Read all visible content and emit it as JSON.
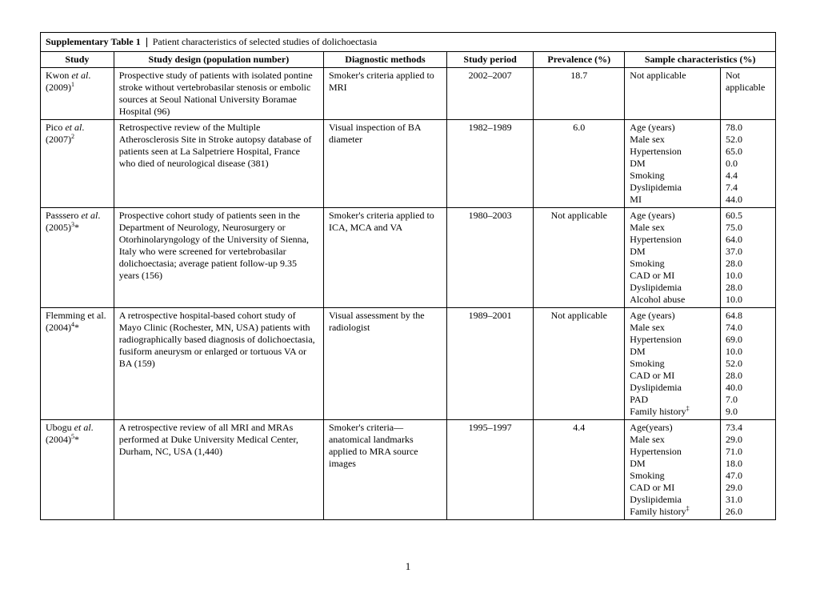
{
  "title_strong": "Supplementary Table 1",
  "title_rest": "Patient characteristics of selected studies of dolichoectasia",
  "headers": {
    "study": "Study",
    "design": "Study design (population number)",
    "diag": "Diagnostic methods",
    "period": "Study period",
    "prev": "Prevalence (%)",
    "chars": "Sample characteristics (%)"
  },
  "rows": [
    {
      "study_html": "Kwon <i>et al</i>. (2009)<sup>1</sup>",
      "design": "Prospective study of patients with isolated pontine stroke without vertebrobasilar stenosis or embolic sources at Seoul National University Boramae Hospital (96)",
      "diag": "Smoker's criteria applied to MRI",
      "period": "2002–2007",
      "prev": "18.7",
      "char_label": "Not applicable",
      "char_value": "Not applicable",
      "char_list": []
    },
    {
      "study_html": "Pico <i>et al</i>. (2007)<sup>2</sup>",
      "design": "Retrospective review of the Multiple Atherosclerosis Site in Stroke autopsy database of patients seen at La Salpetriere Hospital, France who died of neurological disease (381)",
      "diag": "Visual inspection of BA diameter",
      "period": "1982–1989",
      "prev": "6.0",
      "char_list": [
        {
          "l": "Age (years)",
          "v": "78.0"
        },
        {
          "l": "Male sex",
          "v": "52.0"
        },
        {
          "l": "Hypertension",
          "v": "65.0"
        },
        {
          "l": "DM",
          "v": "0.0"
        },
        {
          "l": "Smoking",
          "v": "4.4"
        },
        {
          "l": "Dyslipidemia",
          "v": "7.4"
        },
        {
          "l": "MI",
          "v": "44.0"
        }
      ]
    },
    {
      "study_html": "Passsero <i>et al</i>. (2005)<sup>3</sup>*",
      "design": "Prospective cohort study of patients seen in the Department of Neurology, Neurosurgery or Otorhinolaryngology of the University of Sienna, Italy who were screened for vertebrobasilar dolichoectasia; average patient follow-up 9.35 years (156)",
      "diag": "Smoker's criteria applied to ICA, MCA and VA",
      "period": "1980–2003",
      "prev": "Not applicable",
      "char_list": [
        {
          "l": "Age (years)",
          "v": "60.5"
        },
        {
          "l": "Male sex",
          "v": "75.0"
        },
        {
          "l": "Hypertension",
          "v": "64.0"
        },
        {
          "l": "DM",
          "v": "37.0"
        },
        {
          "l": "Smoking",
          "v": "28.0"
        },
        {
          "l": "CAD or MI",
          "v": "10.0"
        },
        {
          "l": "Dyslipidemia",
          "v": "28.0"
        },
        {
          "l": "Alcohol abuse",
          "v": "10.0"
        }
      ]
    },
    {
      "study_html": "Flemming et al. (2004)<sup>4</sup>*",
      "design": "A retrospective hospital-based cohort study of Mayo Clinic (Rochester, MN, USA) patients with radiographically based diagnosis of dolichoectasia, fusiform aneurysm or enlarged or tortuous VA or BA (159)",
      "diag": "Visual assessment by the radiologist",
      "period": "1989–2001",
      "prev": "Not applicable",
      "char_list": [
        {
          "l": "Age (years)",
          "v": "64.8"
        },
        {
          "l": "Male sex",
          "v": "74.0"
        },
        {
          "l": "Hypertension",
          "v": "69.0"
        },
        {
          "l": "DM",
          "v": "10.0"
        },
        {
          "l": "Smoking",
          "v": "52.0"
        },
        {
          "l": "CAD or MI",
          "v": "28.0"
        },
        {
          "l": "Dyslipidemia",
          "v": "40.0"
        },
        {
          "l": "PAD",
          "v": "7.0"
        },
        {
          "l": "Family history<sup>‡</sup>",
          "v": "9.0"
        }
      ]
    },
    {
      "study_html": "Ubogu <i>et al</i>. (2004)<sup>5</sup>*",
      "design": "A retrospective review of all MRI and MRAs performed at Duke University Medical Center, Durham, NC, USA (1,440)",
      "diag": "Smoker's criteria—anatomical landmarks applied to MRA source images",
      "period": "1995–1997",
      "prev": "4.4",
      "char_list": [
        {
          "l": "Age(years)",
          "v": "73.4"
        },
        {
          "l": "Male sex",
          "v": "29.0"
        },
        {
          "l": "Hypertension",
          "v": "71.0"
        },
        {
          "l": "DM",
          "v": "18.0"
        },
        {
          "l": "Smoking",
          "v": "47.0"
        },
        {
          "l": "CAD or MI",
          "v": "29.0"
        },
        {
          "l": "Dyslipidemia",
          "v": "31.0"
        },
        {
          "l": "Family history<sup>‡</sup>",
          "v": "26.0"
        }
      ]
    }
  ],
  "page_number": "1"
}
